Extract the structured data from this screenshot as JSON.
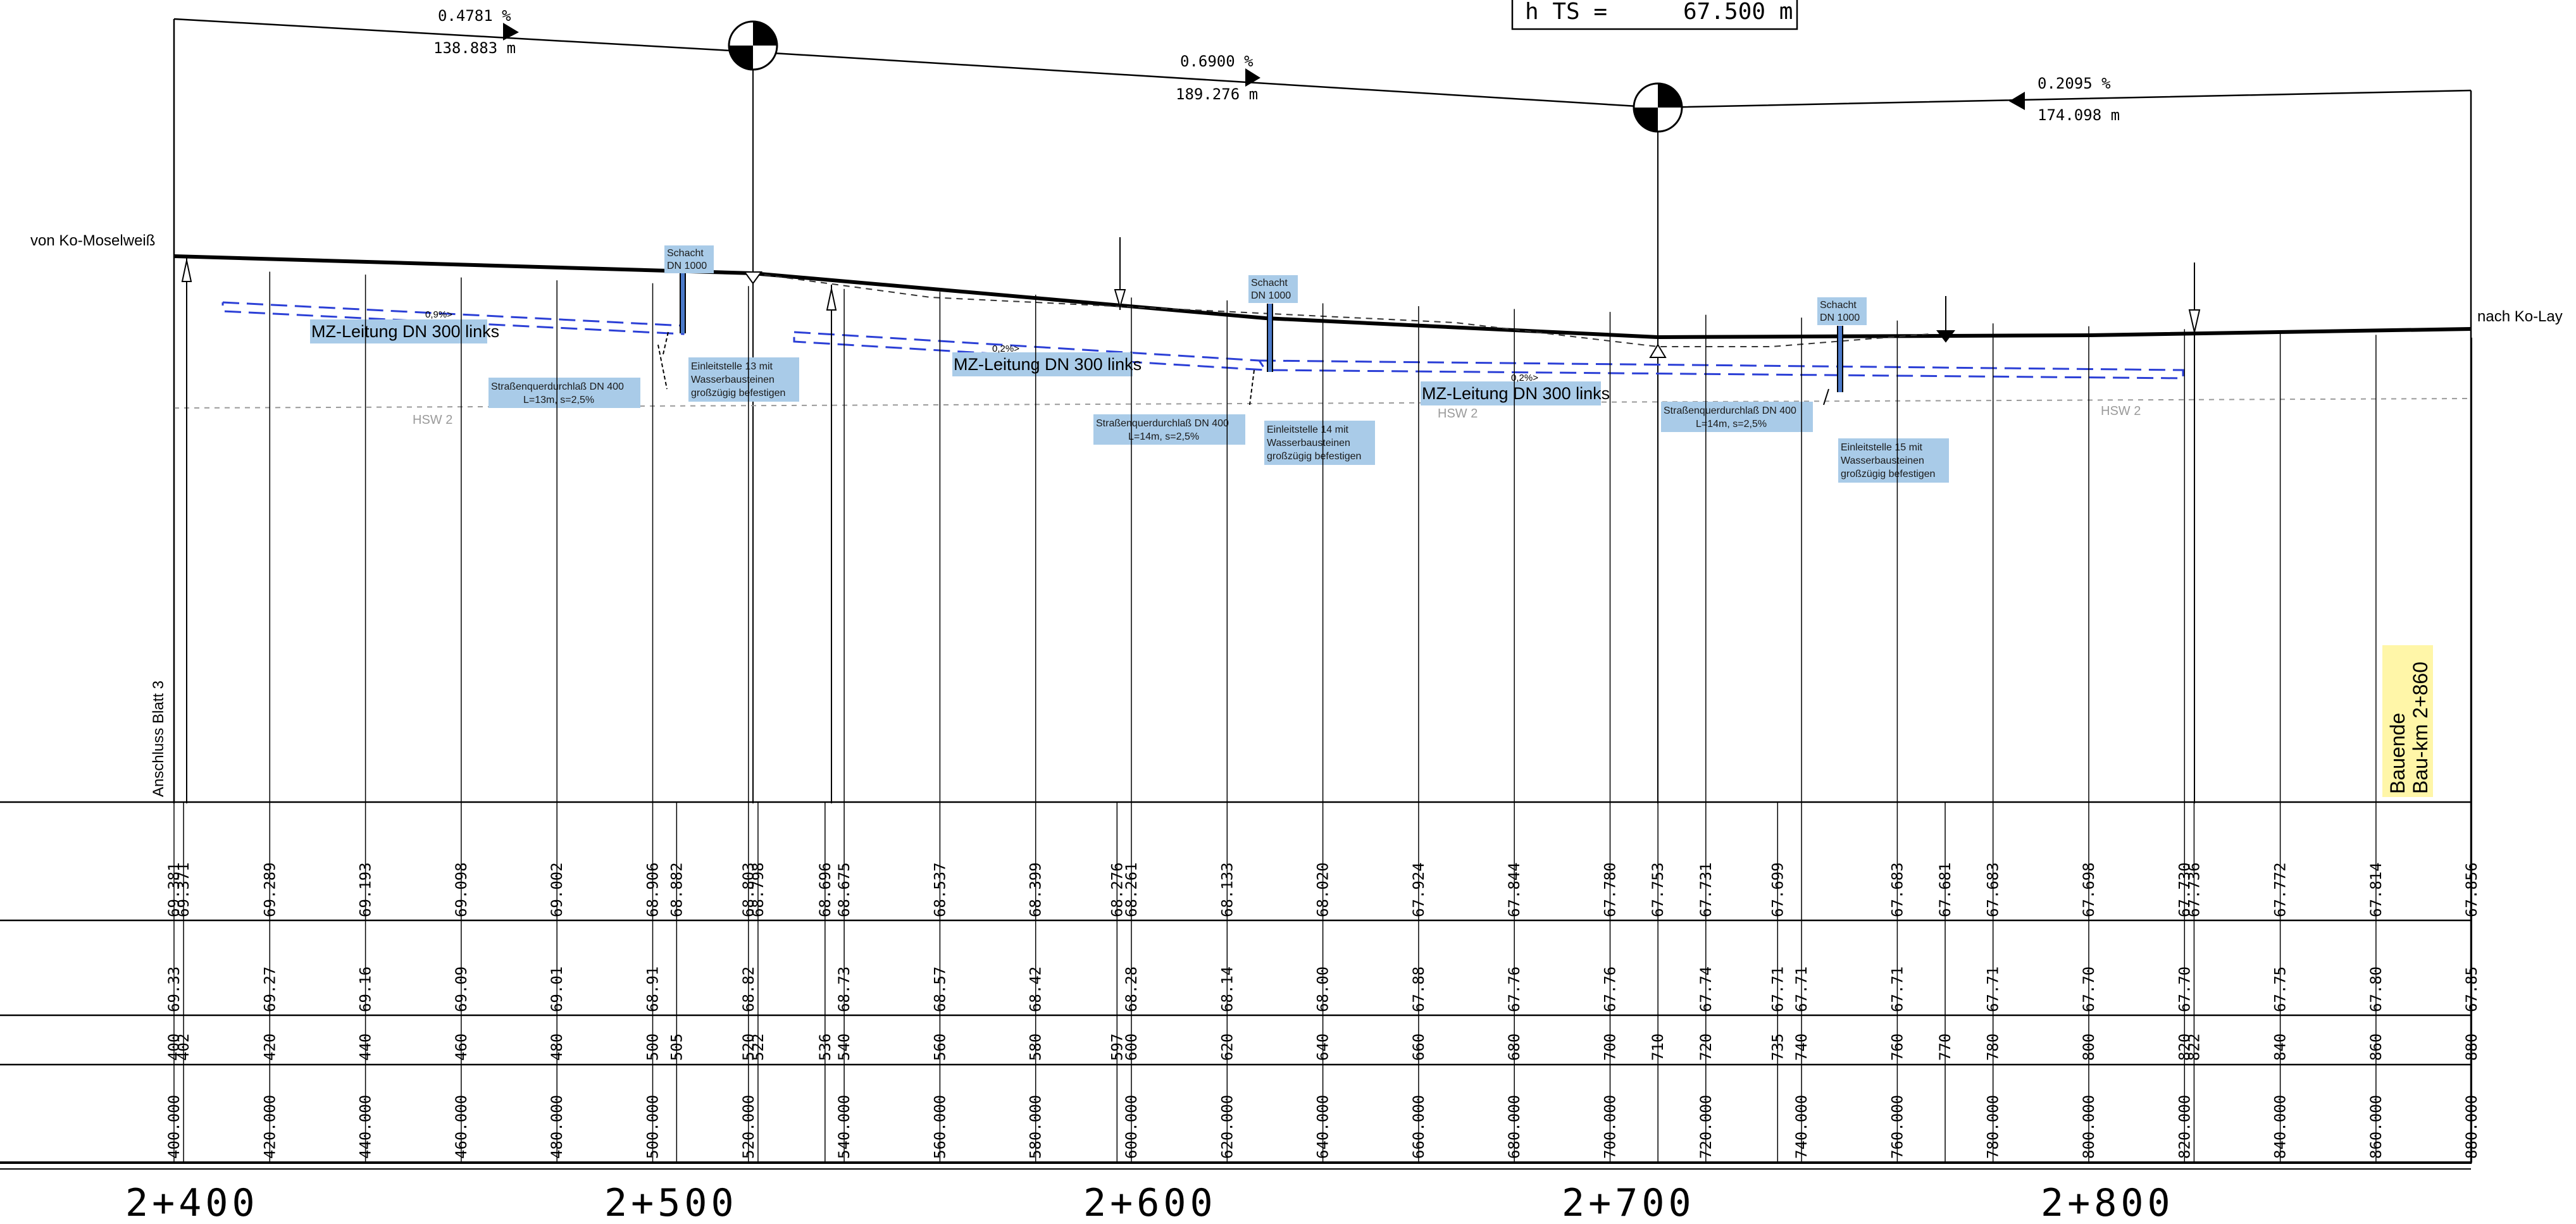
{
  "header": {
    "h_ts_label": "h TS =",
    "h_ts_value": "67.500 m"
  },
  "slopes": [
    {
      "percent": "0.4781 %",
      "length": "138.883 m"
    },
    {
      "percent": "0.6900 %",
      "length": "189.276 m"
    },
    {
      "percent": "0.2095 %",
      "length": "174.098 m"
    }
  ],
  "labels": {
    "from": "von Ko-Moselweiß",
    "to": "nach Ko-Lay",
    "connection": "Anschluss Blatt 3",
    "hsw": "HSW 2",
    "bauende_line1": "Bauende",
    "bauende_line2": "Bau-km 2+860"
  },
  "pipes": [
    {
      "name": "MZ-Leitung DN 300 links",
      "slope": "0,9%>"
    },
    {
      "name": "MZ-Leitung DN 300 links",
      "slope": "0,2%>"
    },
    {
      "name": "MZ-Leitung DN 300 links",
      "slope": "0,2%>"
    }
  ],
  "shafts": [
    {
      "line1": "Schacht",
      "line2": "DN 1000"
    },
    {
      "line1": "Schacht",
      "line2": "DN 1000"
    },
    {
      "line1": "Schacht",
      "line2": "DN 1000"
    }
  ],
  "culverts": [
    {
      "line1": "Straßenquerdurchlaß DN 400",
      "line2": "L=13m, s=2,5%"
    },
    {
      "line1": "Straßenquerdurchlaß DN 400",
      "line2": "L=14m, s=2,5%"
    },
    {
      "line1": "Straßenquerdurchlaß DN 400",
      "line2": "L=14m, s=2,5%"
    }
  ],
  "inlets": [
    {
      "line1": "Einleitstelle 13 mit",
      "line2": "Wasserbausteinen",
      "line3": "großzügig befestigen"
    },
    {
      "line1": "Einleitstelle 14 mit",
      "line2": "Wasserbausteinen",
      "line3": "großzügig befestigen"
    },
    {
      "line1": "Einleitstelle 15 mit",
      "line2": "Wasserbausteinen",
      "line3": "großzügig befestigen"
    }
  ],
  "table": {
    "stations": [
      400,
      402,
      420,
      440,
      460,
      480,
      500,
      505,
      520,
      522,
      536,
      540,
      560,
      580,
      597,
      600,
      620,
      640,
      660,
      680,
      700,
      710,
      720,
      735,
      740,
      760,
      770,
      780,
      800,
      820,
      822,
      840,
      860,
      880
    ],
    "design": [
      "69.381",
      "69.371",
      "69.289",
      "69.193",
      "69.098",
      "69.002",
      "68.906",
      "68.882",
      "68.803",
      "68.798",
      "68.696",
      "68.675",
      "68.537",
      "68.399",
      "68.276",
      "68.261",
      "68.133",
      "68.020",
      "67.924",
      "67.844",
      "67.780",
      "67.753",
      "67.731",
      "67.699",
      "",
      "67.683",
      "67.681",
      "67.683",
      "67.698",
      "67.730",
      "67.736",
      "67.772",
      "67.814",
      "67.856"
    ],
    "existing": [
      "69.33",
      "",
      "69.27",
      "69.16",
      "69.09",
      "69.01",
      "68.91",
      "",
      "68.82",
      "",
      "",
      "68.73",
      "68.57",
      "68.42",
      "",
      "68.28",
      "68.14",
      "68.00",
      "67.88",
      "67.76",
      "67.76",
      "",
      "67.74",
      "67.71",
      "67.71",
      "67.71",
      "",
      "67.71",
      "67.70",
      "67.70",
      "",
      "67.75",
      "67.80",
      "67.85"
    ],
    "station_m": [
      "400",
      "402",
      "420",
      "440",
      "460",
      "480",
      "500",
      "505",
      "520",
      "522",
      "536",
      "540",
      "560",
      "580",
      "597",
      "600",
      "620",
      "640",
      "660",
      "680",
      "700",
      "710",
      "720",
      "735",
      "740",
      "760",
      "770",
      "780",
      "800",
      "820",
      "822",
      "840",
      "860",
      "880"
    ],
    "station_full": [
      "400.000",
      "",
      "420.000",
      "440.000",
      "460.000",
      "480.000",
      "500.000",
      "",
      "520.000",
      "",
      "",
      "540.000",
      "560.000",
      "580.000",
      "",
      "600.000",
      "620.000",
      "640.000",
      "660.000",
      "680.000",
      "700.000",
      "",
      "720.000",
      "",
      "740.000",
      "760.000",
      "",
      "780.000",
      "800.000",
      "820.000",
      "",
      "840.000",
      "860.000",
      "880.000"
    ]
  },
  "station_axis": [
    "2+400",
    "2+500",
    "2+600",
    "2+700",
    "2+800"
  ],
  "colors": {
    "line": "#000000",
    "pipe": "#2b3fd6",
    "label_box": "#a9cbe8",
    "bauende_box": "#fff6a8",
    "hsw": "#9a9a9a"
  }
}
